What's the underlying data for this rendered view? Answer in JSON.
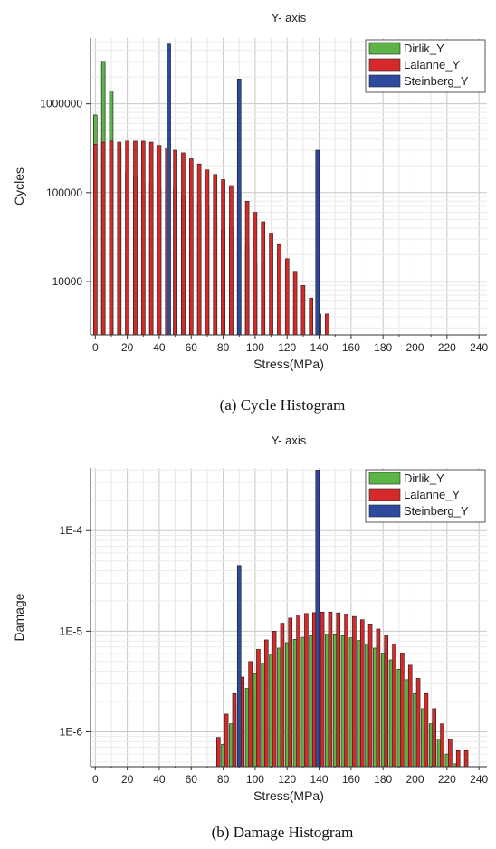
{
  "chart_data": [
    {
      "type": "bar",
      "title": "Y- axis",
      "caption": "(a) Cycle Histogram",
      "xlabel": "Stress(MPa)",
      "ylabel": "Cycles",
      "yscale": "log",
      "xlim": [
        -3,
        245
      ],
      "ylim": [
        2500,
        5500000
      ],
      "xticks": [
        0,
        20,
        40,
        60,
        80,
        100,
        120,
        140,
        160,
        180,
        200,
        220,
        240
      ],
      "ytick_labels": [
        "10000",
        "100000",
        "1000000"
      ],
      "ytick_values": [
        10000,
        100000,
        1000000
      ],
      "grid": true,
      "legend_position": "top-right",
      "series": [
        {
          "name": "Dirlik_Y",
          "color": "#5cb346",
          "x": [
            0,
            5,
            10,
            15,
            20,
            25,
            30,
            35,
            40,
            45,
            50,
            55,
            60,
            65,
            70,
            75,
            80,
            85,
            90,
            95,
            100,
            105
          ],
          "values": [
            750000,
            3000000,
            1400000,
            330000,
            170000,
            150000,
            130000,
            130000,
            110000,
            110000,
            110000,
            90000,
            90000,
            75000,
            70000,
            55000,
            38000,
            40000,
            38000,
            25000,
            16000,
            17000
          ]
        },
        {
          "name": "Lalanne_Y",
          "color": "#d42a2a",
          "x": [
            0,
            5,
            10,
            15,
            20,
            25,
            30,
            35,
            40,
            45,
            50,
            55,
            60,
            65,
            70,
            75,
            80,
            85,
            90,
            95,
            100,
            105,
            110,
            115,
            120,
            125,
            130,
            135,
            140,
            145
          ],
          "values": [
            350000,
            370000,
            380000,
            370000,
            380000,
            380000,
            380000,
            370000,
            340000,
            320000,
            300000,
            280000,
            240000,
            210000,
            180000,
            160000,
            140000,
            120000,
            100000,
            80000,
            60000,
            47000,
            35000,
            26000,
            18000,
            13000,
            9000,
            6500,
            4300,
            4300
          ]
        },
        {
          "name": "Steinberg_Y",
          "color": "#2e4a9e",
          "x": [
            46,
            90,
            139
          ],
          "values": [
            4700000,
            1900000,
            300000
          ]
        }
      ]
    },
    {
      "type": "bar",
      "title": "Y- axis",
      "caption": "(b) Damage Histogram",
      "xlabel": "Stress(MPa)",
      "ylabel": "Damage",
      "yscale": "log",
      "xlim": [
        -3,
        245
      ],
      "ylim": [
        4.5e-07,
        0.00042
      ],
      "xticks": [
        0,
        20,
        40,
        60,
        80,
        100,
        120,
        140,
        160,
        180,
        200,
        220,
        240
      ],
      "ytick_labels": [
        "1E-6",
        "1E-5",
        "1E-4"
      ],
      "ytick_values": [
        1e-06,
        1e-05,
        0.0001
      ],
      "grid": true,
      "legend_position": "top-right",
      "series": [
        {
          "name": "Dirlik_Y",
          "color": "#5cb346",
          "x": [
            80,
            85,
            90,
            95,
            100,
            105,
            110,
            115,
            120,
            125,
            130,
            135,
            140,
            145,
            150,
            155,
            160,
            165,
            170,
            175,
            180,
            185,
            190,
            195,
            200,
            205,
            210,
            215,
            220,
            225
          ],
          "values": [
            7.5e-07,
            1.2e-06,
            1.8e-06,
            2.7e-06,
            3.8e-06,
            4.8e-06,
            5.8e-06,
            6.8e-06,
            7.7e-06,
            8.3e-06,
            8.7e-06,
            9e-06,
            9.2e-06,
            9.3e-06,
            9.2e-06,
            9e-06,
            8.6e-06,
            8.1e-06,
            7.5e-06,
            6.8e-06,
            6e-06,
            5.2e-06,
            4.2e-06,
            3.3e-06,
            2.4e-06,
            1.7e-06,
            1.2e-06,
            8.5e-07,
            6e-07,
            4.8e-07
          ]
        },
        {
          "name": "Lalanne_Y",
          "color": "#d42a2a",
          "x": [
            77,
            82,
            87,
            92,
            97,
            102,
            107,
            112,
            117,
            122,
            127,
            132,
            137,
            142,
            147,
            152,
            157,
            162,
            167,
            172,
            177,
            182,
            187,
            192,
            197,
            202,
            207,
            212,
            217,
            222,
            227,
            232
          ],
          "values": [
            8.8e-07,
            1.5e-06,
            2.4e-06,
            3.5e-06,
            5e-06,
            6.6e-06,
            8.2e-06,
            1e-05,
            1.2e-05,
            1.35e-05,
            1.45e-05,
            1.5e-05,
            1.53e-05,
            1.55e-05,
            1.55e-05,
            1.52e-05,
            1.48e-05,
            1.4e-05,
            1.3e-05,
            1.18e-05,
            1.05e-05,
            9e-06,
            7.5e-06,
            6e-06,
            4.6e-06,
            3.4e-06,
            2.4e-06,
            1.7e-06,
            1.2e-06,
            8.5e-07,
            6.5e-07,
            6.5e-07
          ]
        },
        {
          "name": "Steinberg_Y",
          "color": "#2e4a9e",
          "x": [
            90,
            139
          ],
          "values": [
            4.5e-05,
            0.0004
          ]
        }
      ]
    }
  ]
}
